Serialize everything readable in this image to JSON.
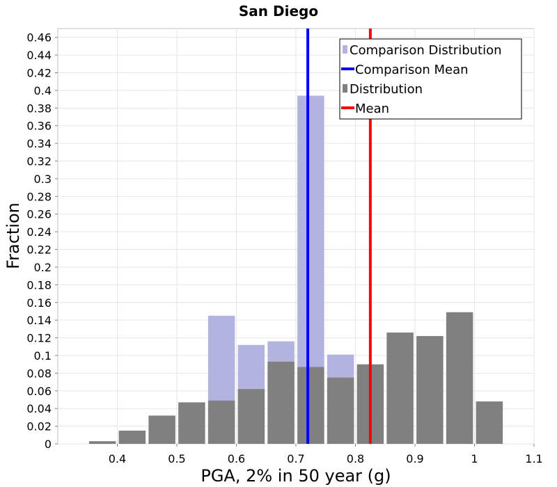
{
  "chart_data": {
    "type": "bar",
    "title": "San Diego",
    "xlabel": "PGA, 2% in 50 year (g)",
    "ylabel": "Fraction",
    "xlim": [
      0.3,
      1.1
    ],
    "ylim": [
      0,
      0.47
    ],
    "x_ticks": [
      0.4,
      0.5,
      0.6,
      0.7,
      0.8,
      0.9,
      1.0,
      1.1
    ],
    "x_tick_labels": [
      "0.4",
      "0.5",
      "0.6",
      "0.7",
      "0.8",
      "0.9",
      "1",
      "1.1"
    ],
    "y_ticks": [
      0,
      0.02,
      0.04,
      0.06,
      0.08,
      0.1,
      0.12,
      0.14,
      0.16,
      0.18,
      0.2,
      0.22,
      0.24,
      0.26,
      0.28,
      0.3,
      0.32,
      0.34,
      0.36,
      0.38,
      0.4,
      0.42,
      0.44,
      0.46
    ],
    "y_tick_labels": [
      "0",
      "0.02",
      "0.04",
      "0.06",
      "0.08",
      "0.1",
      "0.12",
      "0.14",
      "0.16",
      "0.18",
      "0.2",
      "0.22",
      "0.24",
      "0.26",
      "0.28",
      "0.3",
      "0.32",
      "0.34",
      "0.36",
      "0.38",
      "0.4",
      "0.42",
      "0.44",
      "0.46"
    ],
    "bin_width": 0.05,
    "grid": true,
    "series": [
      {
        "name": "Comparison Distribution",
        "kind": "bar",
        "color": "#b3b3e0",
        "bin_centers": [
          0.575,
          0.625,
          0.675,
          0.725,
          0.775
        ],
        "values": [
          0.145,
          0.112,
          0.116,
          0.394,
          0.101
        ]
      },
      {
        "name": "Distribution",
        "kind": "bar",
        "color": "#808080",
        "bin_centers": [
          0.375,
          0.425,
          0.475,
          0.525,
          0.575,
          0.625,
          0.675,
          0.725,
          0.775,
          0.825,
          0.875,
          0.925,
          0.975,
          1.025
        ],
        "values": [
          0.003,
          0.015,
          0.032,
          0.047,
          0.049,
          0.062,
          0.093,
          0.087,
          0.075,
          0.09,
          0.126,
          0.122,
          0.149,
          0.048
        ]
      },
      {
        "name": "Comparison Mean",
        "kind": "vline",
        "color": "#0000ff",
        "x": 0.72
      },
      {
        "name": "Mean",
        "kind": "vline",
        "color": "#ff0000",
        "x": 0.825
      }
    ],
    "legend": {
      "position": "top-right",
      "order": [
        "Comparison Distribution",
        "Comparison Mean",
        "Distribution",
        "Mean"
      ]
    }
  }
}
